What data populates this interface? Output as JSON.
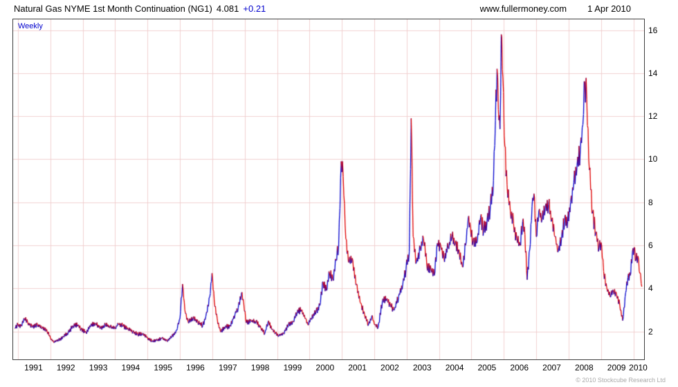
{
  "header": {
    "title": "Natural Gas NYME 1st Month Continuation (NG1)",
    "price": "4.081",
    "change": "+0.21",
    "website": "www.fullermoney.com",
    "date": "1 Apr 2010"
  },
  "chart": {
    "frequency_label": "Weekly",
    "copyright": "© 2010 Stockcube Research Ltd",
    "colors": {
      "up": "#0000cd",
      "down": "#e00000",
      "grid": "#f0d0d0",
      "border": "#3c3c3c",
      "accent_blue": "#0000cd"
    }
  },
  "chart_data": {
    "type": "line",
    "title": "Natural Gas NYME 1st Month Continuation (NG1)",
    "series_name": "NG1 weekly price",
    "xlabel": "",
    "ylabel": "",
    "x_range": [
      1990.85,
      2010.33
    ],
    "y_range": [
      0.7,
      16.5
    ],
    "y_ticks": [
      2,
      4,
      6,
      8,
      10,
      12,
      14,
      16
    ],
    "x_ticks": [
      1991,
      1992,
      1993,
      1994,
      1995,
      1996,
      1997,
      1998,
      1999,
      2000,
      2001,
      2002,
      2003,
      2004,
      2005,
      2006,
      2007,
      2008,
      2009,
      2010
    ],
    "weekly_jitter": 0.055,
    "points": [
      [
        1990.9,
        2.15
      ],
      [
        1991.0,
        2.3
      ],
      [
        1991.1,
        2.25
      ],
      [
        1991.2,
        2.6
      ],
      [
        1991.3,
        2.4
      ],
      [
        1991.45,
        2.2
      ],
      [
        1991.6,
        2.3
      ],
      [
        1991.75,
        2.15
      ],
      [
        1991.9,
        2.0
      ],
      [
        1992.0,
        1.7
      ],
      [
        1992.1,
        1.5
      ],
      [
        1992.25,
        1.6
      ],
      [
        1992.4,
        1.75
      ],
      [
        1992.55,
        1.95
      ],
      [
        1992.7,
        2.25
      ],
      [
        1992.85,
        2.3
      ],
      [
        1992.95,
        2.1
      ],
      [
        1993.1,
        1.95
      ],
      [
        1993.25,
        2.3
      ],
      [
        1993.4,
        2.35
      ],
      [
        1993.55,
        2.15
      ],
      [
        1993.7,
        2.3
      ],
      [
        1993.85,
        2.2
      ],
      [
        1994.0,
        2.15
      ],
      [
        1994.1,
        2.35
      ],
      [
        1994.25,
        2.25
      ],
      [
        1994.4,
        2.1
      ],
      [
        1994.55,
        2.0
      ],
      [
        1994.7,
        1.85
      ],
      [
        1994.85,
        1.9
      ],
      [
        1995.0,
        1.7
      ],
      [
        1995.15,
        1.55
      ],
      [
        1995.3,
        1.6
      ],
      [
        1995.45,
        1.7
      ],
      [
        1995.6,
        1.55
      ],
      [
        1995.75,
        1.75
      ],
      [
        1995.9,
        2.05
      ],
      [
        1996.0,
        2.6
      ],
      [
        1996.08,
        4.2
      ],
      [
        1996.15,
        3.0
      ],
      [
        1996.25,
        2.45
      ],
      [
        1996.4,
        2.6
      ],
      [
        1996.55,
        2.45
      ],
      [
        1996.7,
        2.25
      ],
      [
        1996.8,
        2.7
      ],
      [
        1996.92,
        3.6
      ],
      [
        1996.99,
        4.7
      ],
      [
        1997.06,
        3.4
      ],
      [
        1997.15,
        2.6
      ],
      [
        1997.25,
        2.0
      ],
      [
        1997.4,
        2.2
      ],
      [
        1997.55,
        2.25
      ],
      [
        1997.7,
        2.8
      ],
      [
        1997.8,
        3.1
      ],
      [
        1997.9,
        3.8
      ],
      [
        1997.97,
        3.3
      ],
      [
        1998.05,
        2.4
      ],
      [
        1998.2,
        2.5
      ],
      [
        1998.35,
        2.45
      ],
      [
        1998.5,
        2.15
      ],
      [
        1998.62,
        1.9
      ],
      [
        1998.72,
        2.45
      ],
      [
        1998.85,
        2.1
      ],
      [
        1998.95,
        1.9
      ],
      [
        1999.05,
        1.8
      ],
      [
        1999.2,
        1.9
      ],
      [
        1999.35,
        2.3
      ],
      [
        1999.5,
        2.45
      ],
      [
        1999.62,
        2.9
      ],
      [
        1999.75,
        3.0
      ],
      [
        1999.88,
        2.6
      ],
      [
        1999.95,
        2.3
      ],
      [
        2000.05,
        2.6
      ],
      [
        2000.2,
        2.9
      ],
      [
        2000.32,
        3.2
      ],
      [
        2000.42,
        4.3
      ],
      [
        2000.52,
        3.9
      ],
      [
        2000.62,
        4.7
      ],
      [
        2000.72,
        4.4
      ],
      [
        2000.82,
        5.3
      ],
      [
        2000.9,
        6.0
      ],
      [
        2000.98,
        9.9
      ],
      [
        2001.04,
        9.2
      ],
      [
        2001.12,
        6.3
      ],
      [
        2001.22,
        5.2
      ],
      [
        2001.32,
        5.4
      ],
      [
        2001.45,
        4.2
      ],
      [
        2001.58,
        3.3
      ],
      [
        2001.7,
        2.8
      ],
      [
        2001.82,
        2.3
      ],
      [
        2001.92,
        2.7
      ],
      [
        2002.02,
        2.3
      ],
      [
        2002.12,
        2.2
      ],
      [
        2002.25,
        3.4
      ],
      [
        2002.38,
        3.5
      ],
      [
        2002.5,
        3.2
      ],
      [
        2002.62,
        3.0
      ],
      [
        2002.75,
        3.6
      ],
      [
        2002.88,
        4.2
      ],
      [
        2002.98,
        4.9
      ],
      [
        2003.08,
        5.7
      ],
      [
        2003.14,
        11.9
      ],
      [
        2003.2,
        6.4
      ],
      [
        2003.3,
        5.2
      ],
      [
        2003.42,
        5.9
      ],
      [
        2003.52,
        6.3
      ],
      [
        2003.62,
        5.1
      ],
      [
        2003.75,
        4.9
      ],
      [
        2003.85,
        4.6
      ],
      [
        2003.95,
        6.1
      ],
      [
        2004.05,
        6.0
      ],
      [
        2004.15,
        5.4
      ],
      [
        2004.28,
        5.9
      ],
      [
        2004.4,
        6.4
      ],
      [
        2004.5,
        6.1
      ],
      [
        2004.6,
        5.8
      ],
      [
        2004.72,
        5.0
      ],
      [
        2004.82,
        6.0
      ],
      [
        2004.9,
        7.3
      ],
      [
        2004.97,
        6.8
      ],
      [
        2005.05,
        6.2
      ],
      [
        2005.18,
        6.2
      ],
      [
        2005.28,
        7.3
      ],
      [
        2005.38,
        6.7
      ],
      [
        2005.48,
        7.1
      ],
      [
        2005.58,
        7.7
      ],
      [
        2005.68,
        9.0
      ],
      [
        2005.74,
        11.8
      ],
      [
        2005.79,
        14.2
      ],
      [
        2005.83,
        12.3
      ],
      [
        2005.88,
        11.4
      ],
      [
        2005.92,
        15.8
      ],
      [
        2005.97,
        13.8
      ],
      [
        2006.03,
        10.6
      ],
      [
        2006.1,
        8.8
      ],
      [
        2006.2,
        7.6
      ],
      [
        2006.3,
        7.0
      ],
      [
        2006.4,
        6.3
      ],
      [
        2006.5,
        6.0
      ],
      [
        2006.58,
        7.1
      ],
      [
        2006.65,
        6.5
      ],
      [
        2006.72,
        4.4
      ],
      [
        2006.8,
        5.8
      ],
      [
        2006.87,
        7.8
      ],
      [
        2006.93,
        8.4
      ],
      [
        2007.0,
        6.4
      ],
      [
        2007.08,
        7.6
      ],
      [
        2007.18,
        7.2
      ],
      [
        2007.28,
        7.8
      ],
      [
        2007.38,
        7.9
      ],
      [
        2007.48,
        7.2
      ],
      [
        2007.58,
        6.4
      ],
      [
        2007.68,
        5.7
      ],
      [
        2007.78,
        6.3
      ],
      [
        2007.88,
        7.3
      ],
      [
        2007.97,
        7.1
      ],
      [
        2008.06,
        8.0
      ],
      [
        2008.16,
        8.9
      ],
      [
        2008.26,
        9.7
      ],
      [
        2008.36,
        10.4
      ],
      [
        2008.44,
        11.6
      ],
      [
        2008.5,
        13.6
      ],
      [
        2008.56,
        12.8
      ],
      [
        2008.64,
        9.5
      ],
      [
        2008.74,
        7.5
      ],
      [
        2008.84,
        6.6
      ],
      [
        2008.94,
        5.9
      ],
      [
        2009.02,
        6.0
      ],
      [
        2009.08,
        4.8
      ],
      [
        2009.18,
        4.0
      ],
      [
        2009.28,
        3.6
      ],
      [
        2009.38,
        3.9
      ],
      [
        2009.48,
        3.7
      ],
      [
        2009.58,
        3.2
      ],
      [
        2009.67,
        2.5
      ],
      [
        2009.76,
        3.8
      ],
      [
        2009.83,
        4.5
      ],
      [
        2009.9,
        4.6
      ],
      [
        2009.97,
        5.7
      ],
      [
        2010.02,
        5.9
      ],
      [
        2010.08,
        5.3
      ],
      [
        2010.14,
        5.5
      ],
      [
        2010.2,
        4.7
      ],
      [
        2010.26,
        4.08
      ]
    ]
  }
}
